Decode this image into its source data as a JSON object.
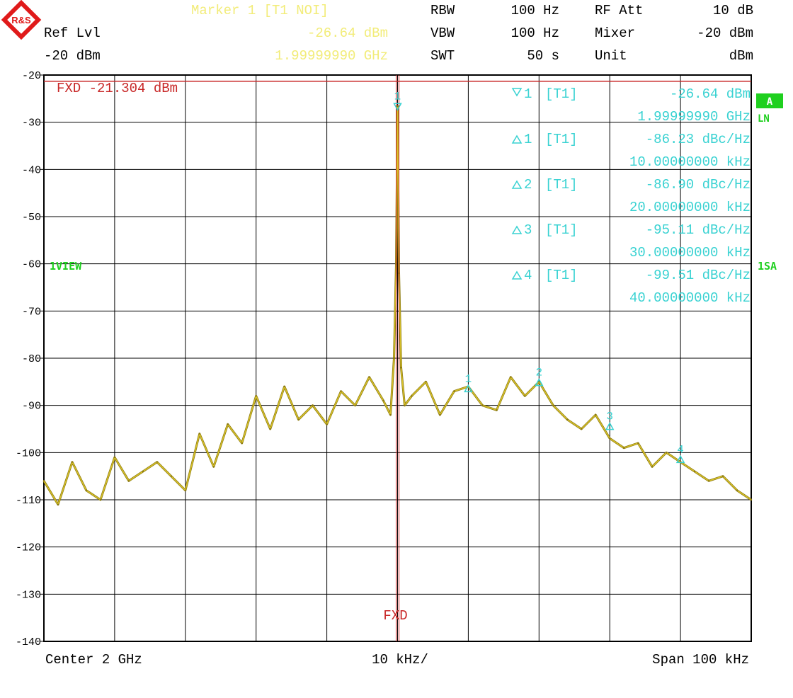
{
  "colors": {
    "trace": "#d8c22a",
    "trace_dark": "#8c7a10",
    "marker": "#39d2d2",
    "header_marker": "#f2ec79",
    "fxd": "#c82828",
    "label_green": "#1fd01f",
    "grid": "#000000",
    "text": "#000000"
  },
  "logo": {
    "text": "R&S"
  },
  "header": {
    "marker_title": "Marker 1 [T1 NOI]",
    "marker_level": "-26.64 dBm",
    "marker_freq": "1.99999990 GHz",
    "ref_lvl_label": "Ref Lvl",
    "ref_lvl_value": "-20 dBm",
    "rbw_label": "RBW",
    "rbw_value": "100 Hz",
    "vbw_label": "VBW",
    "vbw_value": "100 Hz",
    "swt_label": "SWT",
    "swt_value": "50 s",
    "rf_att_label": "RF Att",
    "rf_att_value": "10 dB",
    "mixer_label": "Mixer",
    "mixer_value": "-20 dBm",
    "unit_label": "Unit",
    "unit_value": "dBm"
  },
  "side_labels": {
    "view": "1VIEW",
    "badge_a": "A",
    "ln": "LN",
    "sa": "1SA"
  },
  "footer": {
    "center": "Center 2 GHz",
    "div": "10 kHz/",
    "span": "Span 100 kHz"
  },
  "chart_data": {
    "type": "line",
    "xlabel": "",
    "ylabel": "",
    "x_units": "kHz offset from center",
    "xlim": [
      -50,
      50
    ],
    "ylim": [
      -140,
      -20
    ],
    "y_ticks": [
      -20,
      -30,
      -40,
      -50,
      -60,
      -70,
      -80,
      -90,
      -100,
      -110,
      -120,
      -130,
      -140
    ],
    "grid": true,
    "fxd_line": {
      "label": "FXD -21.304 dBm",
      "value": -21.304
    },
    "fxd_vertical_label": "FXD",
    "series": [
      {
        "x": [
          -50,
          -48,
          -46,
          -44,
          -42,
          -40,
          -38,
          -36,
          -34,
          -32,
          -30,
          -28,
          -26,
          -24,
          -22,
          -20,
          -18,
          -16,
          -14,
          -12,
          -10,
          -8,
          -6,
          -4,
          -2,
          -1,
          -0.5,
          -0.2,
          0,
          0.2,
          0.5,
          1,
          2,
          4,
          6,
          8,
          10,
          12,
          14,
          16,
          18,
          20,
          22,
          24,
          26,
          28,
          30,
          32,
          34,
          36,
          38,
          40,
          42,
          44,
          46,
          48,
          50
        ],
        "values": [
          -106,
          -111,
          -102,
          -108,
          -110,
          -101,
          -106,
          -104,
          -102,
          -105,
          -108,
          -96,
          -103,
          -94,
          -98,
          -88,
          -95,
          -86,
          -93,
          -90,
          -94,
          -87,
          -90,
          -84,
          -89,
          -92,
          -80,
          -60,
          -26.6,
          -62,
          -82,
          -90,
          -88,
          -85,
          -92,
          -87,
          -86,
          -90,
          -91,
          -84,
          -88,
          -85,
          -90,
          -93,
          -95,
          -92,
          -97,
          -99,
          -98,
          -103,
          -100,
          -102,
          -104,
          -106,
          -105,
          -108,
          -110
        ]
      }
    ],
    "markers": [
      {
        "type": "normal",
        "label": "1",
        "name": "[T1]",
        "x": -0.001,
        "value": "-26.64 dBm",
        "position": "1.99999990 GHz"
      },
      {
        "type": "delta",
        "label": "1",
        "name": "[T1]",
        "x": 10,
        "y": -86.5,
        "value": "-86.23 dBc/Hz",
        "position": "10.00000000 kHz"
      },
      {
        "type": "delta",
        "label": "2",
        "name": "[T1]",
        "x": 20,
        "y": -85.2,
        "value": "-86.90 dBc/Hz",
        "position": "20.00000000 kHz"
      },
      {
        "type": "delta",
        "label": "3",
        "name": "[T1]",
        "x": 30,
        "y": -94.5,
        "value": "-95.11 dBc/Hz",
        "position": "30.00000000 kHz"
      },
      {
        "type": "delta",
        "label": "4",
        "name": "[T1]",
        "x": 40,
        "y": -101.5,
        "value": "-99.51 dBc/Hz",
        "position": "40.00000000 kHz"
      }
    ]
  }
}
